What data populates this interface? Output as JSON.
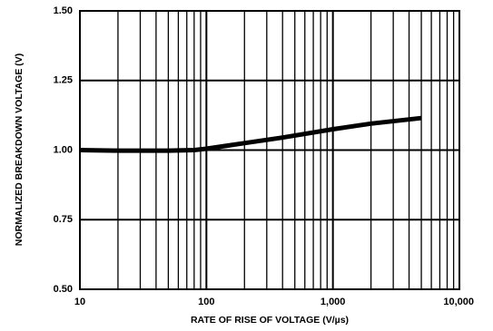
{
  "chart_data": {
    "type": "line",
    "title": "",
    "xlabel": "RATE OF RISE OF VOLTAGE (V/µs)",
    "ylabel": "NORMALIZED BREAKDOWN VOLTAGE (V)",
    "x_scale": "log",
    "xlim": [
      10,
      10000
    ],
    "ylim": [
      0.5,
      1.5
    ],
    "grid": true,
    "x_ticks": [
      10,
      100,
      1000,
      10000
    ],
    "x_tick_labels": [
      "10",
      "100",
      "1,000",
      "10,000"
    ],
    "y_ticks": [
      0.5,
      0.75,
      1.0,
      1.25,
      1.5
    ],
    "y_tick_labels": [
      "0.50",
      "0.75",
      "1.00",
      "1.25",
      "1.50"
    ],
    "series": [
      {
        "x": [
          10,
          20,
          50,
          80,
          100,
          200,
          400,
          1000,
          2000,
          5000
        ],
        "y": [
          1.0,
          0.998,
          0.998,
          1.0,
          1.005,
          1.025,
          1.045,
          1.075,
          1.095,
          1.115
        ]
      }
    ]
  }
}
